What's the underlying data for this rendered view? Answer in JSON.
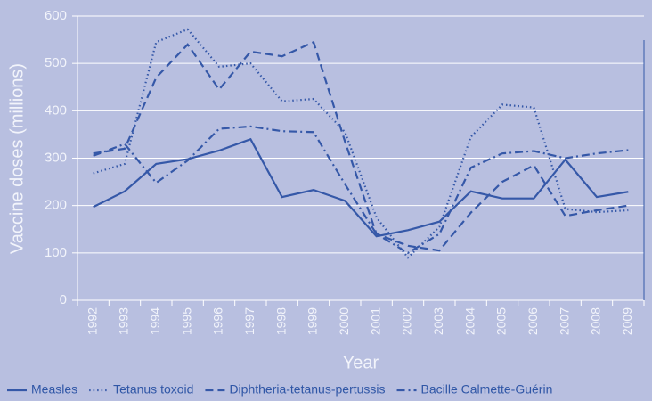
{
  "chart_data": {
    "type": "line",
    "categories": [
      "1992",
      "1993",
      "1994",
      "1995",
      "1996",
      "1997",
      "1998",
      "1999",
      "2000",
      "2001",
      "2002",
      "2003",
      "2004",
      "2005",
      "2006",
      "2007",
      "2008",
      "2009"
    ],
    "x_label": "Year",
    "y_label": "Vaccine doses (millions)",
    "ylim": [
      0,
      600
    ],
    "yticks": [
      0,
      100,
      200,
      300,
      400,
      500,
      600
    ],
    "grid": true,
    "legend": "bottom",
    "series": [
      {
        "name": "Measles",
        "color": "#3558a8",
        "dash": "solid",
        "values": [
          197,
          230,
          288,
          298,
          316,
          340,
          218,
          233,
          210,
          135,
          148,
          166,
          230,
          215,
          215,
          297,
          218,
          229
        ]
      },
      {
        "name": "Tetanus toxoid",
        "color": "#3558a8",
        "dash": "dotted",
        "values": [
          268,
          288,
          545,
          572,
          493,
          500,
          420,
          425,
          355,
          175,
          90,
          155,
          345,
          413,
          407,
          193,
          186,
          190
        ]
      },
      {
        "name": "Diphtheria-tetanus-pertussis",
        "color": "#3558a8",
        "dash": "dashed",
        "values": [
          310,
          320,
          470,
          540,
          445,
          525,
          515,
          545,
          335,
          140,
          115,
          105,
          185,
          250,
          285,
          178,
          190,
          200
        ]
      },
      {
        "name": "Bacille Calmette-Guérin",
        "color": "#3558a8",
        "dash": "dashdot",
        "values": [
          305,
          330,
          248,
          295,
          362,
          367,
          357,
          355,
          245,
          140,
          100,
          140,
          280,
          310,
          315,
          300,
          310,
          317
        ]
      }
    ]
  }
}
